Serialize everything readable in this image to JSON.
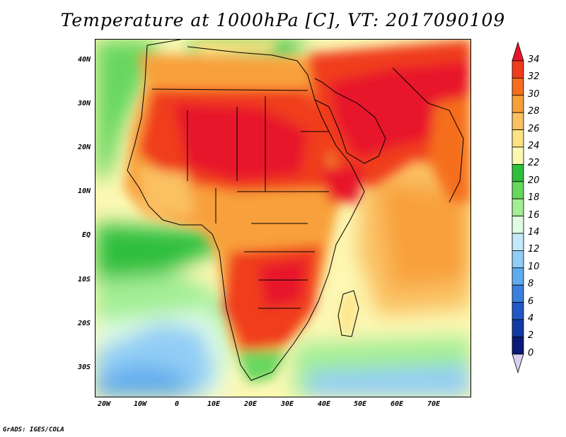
{
  "title": "Temperature at 1000hPa [C], VT: 2017090109",
  "footer": "GrADS: IGES/COLA",
  "map": {
    "lon_ticks": [
      "20W",
      "10W",
      "0",
      "10E",
      "20E",
      "30E",
      "40E",
      "50E",
      "60E",
      "70E"
    ],
    "lat_ticks": [
      "40N",
      "30N",
      "20N",
      "10N",
      "EQ",
      "10S",
      "20S",
      "30S"
    ]
  },
  "colorbar": {
    "labels": [
      "34",
      "32",
      "30",
      "28",
      "26",
      "24",
      "22",
      "20",
      "18",
      "16",
      "14",
      "12",
      "10",
      "8",
      "6",
      "4",
      "2",
      "0"
    ],
    "colors": [
      "#e8142c",
      "#f03c1e",
      "#f56e1e",
      "#f8a03a",
      "#fac062",
      "#fde284",
      "#fcf8b4",
      "#2fbf3d",
      "#68d75e",
      "#a3ee94",
      "#e0fde4",
      "#c3e9fb",
      "#91cdf5",
      "#5fabec",
      "#3a80dc",
      "#2158c6",
      "#103aa2",
      "#0a1a78",
      "#d8d0f0"
    ]
  }
}
